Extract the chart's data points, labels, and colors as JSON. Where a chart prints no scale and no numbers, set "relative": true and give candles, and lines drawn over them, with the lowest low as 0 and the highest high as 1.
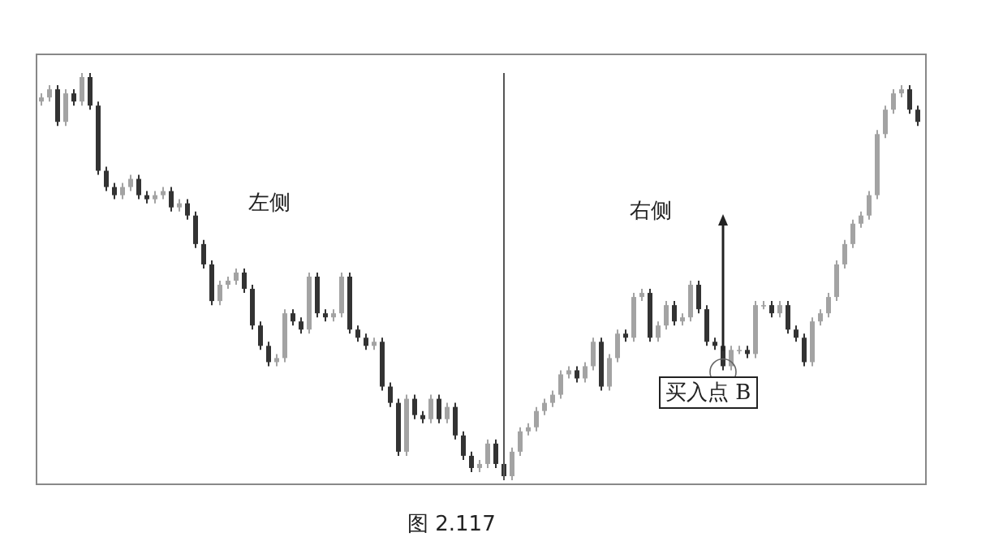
{
  "chart_data": {
    "type": "candlestick",
    "relative": true,
    "colors": [
      "#a3a3a3",
      "#a3a3a3",
      "#333333",
      "#a3a3a3",
      "#333333",
      "#a3a3a3",
      "#333333",
      "#333333",
      "#333333",
      "#333333",
      "#a3a3a3",
      "#a3a3a3",
      "#333333",
      "#333333",
      "#a3a3a3",
      "#a3a3a3",
      "#333333",
      "#a3a3a3",
      "#333333",
      "#333333",
      "#333333",
      "#333333",
      "#a3a3a3",
      "#a3a3a3",
      "#a3a3a3",
      "#333333",
      "#333333",
      "#333333",
      "#333333",
      "#a3a3a3",
      "#a3a3a3",
      "#333333",
      "#333333",
      "#a3a3a3",
      "#333333",
      "#333333",
      "#a3a3a3",
      "#a3a3a3",
      "#333333",
      "#333333",
      "#333333",
      "#a3a3a3",
      "#333333",
      "#333333",
      "#333333",
      "#a3a3a3",
      "#333333",
      "#333333",
      "#a3a3a3",
      "#333333",
      "#a3a3a3",
      "#333333",
      "#333333",
      "#333333",
      "#a3a3a3",
      "#a3a3a3",
      "#333333",
      "#333333",
      "#a3a3a3",
      "#a3a3a3",
      "#a3a3a3",
      "#a3a3a3",
      "#a3a3a3",
      "#a3a3a3",
      "#a3a3a3",
      "#a3a3a3",
      "#333333",
      "#a3a3a3",
      "#a3a3a3",
      "#333333",
      "#a3a3a3",
      "#a3a3a3",
      "#333333",
      "#a3a3a3",
      "#a3a3a3",
      "#333333",
      "#a3a3a3",
      "#a3a3a3",
      "#333333",
      "#a3a3a3",
      "#a3a3a3",
      "#333333",
      "#333333",
      "#333333",
      "#333333",
      "#a3a3a3",
      "#a3a3a3",
      "#333333",
      "#a3a3a3",
      "#a3a3a3",
      "#333333",
      "#a3a3a3",
      "#333333",
      "#333333",
      "#333333",
      "#a3a3a3",
      "#a3a3a3",
      "#a3a3a3",
      "#a3a3a3",
      "#a3a3a3",
      "#a3a3a3",
      "#a3a3a3",
      "#a3a3a3",
      "#a3a3a3",
      "#a3a3a3",
      "#a3a3a3",
      "#a3a3a3",
      "#333333",
      "#333333"
    ],
    "annotations": [
      "左侧",
      "右侧",
      "买入点 B",
      "图 2.117"
    ],
    "categories": [
      null,
      null,
      null,
      null,
      null,
      null,
      null,
      null,
      null,
      null,
      null,
      null,
      null,
      null,
      null,
      null,
      null,
      null,
      null,
      null,
      null,
      null,
      null,
      null,
      null,
      null,
      null,
      null,
      null,
      null,
      null,
      null,
      null,
      null,
      null,
      null,
      null,
      null,
      null,
      null,
      null,
      null,
      null,
      null,
      null,
      null,
      null,
      null,
      null,
      null,
      null,
      null,
      null,
      null,
      null,
      null,
      null,
      null,
      null,
      null,
      null,
      null,
      null,
      null,
      null,
      null,
      null,
      null,
      null,
      null,
      null,
      null,
      null,
      null,
      null,
      null,
      null,
      null,
      null,
      null,
      null,
      null,
      null,
      null,
      null,
      null,
      null,
      null,
      null,
      null,
      null,
      null,
      null,
      null,
      null,
      null,
      null,
      null,
      null,
      null,
      null,
      null,
      null,
      null,
      null,
      null,
      null,
      null,
      null
    ],
    "ohlc": [
      [
        0.93,
        0.95,
        0.92,
        0.94
      ],
      [
        0.94,
        0.97,
        0.93,
        0.96
      ],
      [
        0.96,
        0.97,
        0.87,
        0.88
      ],
      [
        0.88,
        0.96,
        0.87,
        0.95
      ],
      [
        0.95,
        0.96,
        0.92,
        0.93
      ],
      [
        0.93,
        1,
        0.92,
        0.99
      ],
      [
        0.99,
        1,
        0.91,
        0.92
      ],
      [
        0.92,
        0.93,
        0.75,
        0.76
      ],
      [
        0.76,
        0.77,
        0.71,
        0.72
      ],
      [
        0.72,
        0.73,
        0.69,
        0.7
      ],
      [
        0.7,
        0.73,
        0.69,
        0.72
      ],
      [
        0.72,
        0.75,
        0.71,
        0.74
      ],
      [
        0.74,
        0.75,
        0.69,
        0.7
      ],
      [
        0.7,
        0.71,
        0.68,
        0.69
      ],
      [
        0.69,
        0.71,
        0.68,
        0.7
      ],
      [
        0.7,
        0.72,
        0.69,
        0.71
      ],
      [
        0.71,
        0.72,
        0.66,
        0.67
      ],
      [
        0.67,
        0.69,
        0.66,
        0.68
      ],
      [
        0.68,
        0.69,
        0.64,
        0.65
      ],
      [
        0.65,
        0.66,
        0.57,
        0.58
      ],
      [
        0.58,
        0.59,
        0.52,
        0.53
      ],
      [
        0.53,
        0.54,
        0.43,
        0.44
      ],
      [
        0.44,
        0.49,
        0.43,
        0.48
      ],
      [
        0.48,
        0.5,
        0.47,
        0.49
      ],
      [
        0.49,
        0.52,
        0.48,
        0.51
      ],
      [
        0.51,
        0.52,
        0.46,
        0.47
      ],
      [
        0.47,
        0.48,
        0.37,
        0.38
      ],
      [
        0.38,
        0.39,
        0.32,
        0.33
      ],
      [
        0.33,
        0.34,
        0.28,
        0.29
      ],
      [
        0.29,
        0.31,
        0.28,
        0.3
      ],
      [
        0.3,
        0.42,
        0.29,
        0.41
      ],
      [
        0.41,
        0.42,
        0.38,
        0.39
      ],
      [
        0.39,
        0.4,
        0.36,
        0.37
      ],
      [
        0.37,
        0.51,
        0.36,
        0.5
      ],
      [
        0.5,
        0.51,
        0.4,
        0.41
      ],
      [
        0.41,
        0.42,
        0.39,
        0.4
      ],
      [
        0.4,
        0.42,
        0.39,
        0.41
      ],
      [
        0.41,
        0.51,
        0.4,
        0.5
      ],
      [
        0.5,
        0.51,
        0.36,
        0.37
      ],
      [
        0.37,
        0.38,
        0.34,
        0.35
      ],
      [
        0.35,
        0.36,
        0.32,
        0.33
      ],
      [
        0.33,
        0.35,
        0.32,
        0.34
      ],
      [
        0.34,
        0.35,
        0.22,
        0.23
      ],
      [
        0.23,
        0.24,
        0.18,
        0.19
      ],
      [
        0.19,
        0.2,
        0.06,
        0.07
      ],
      [
        0.07,
        0.21,
        0.06,
        0.2
      ],
      [
        0.2,
        0.21,
        0.15,
        0.16
      ],
      [
        0.16,
        0.17,
        0.14,
        0.15
      ],
      [
        0.15,
        0.21,
        0.14,
        0.2
      ],
      [
        0.2,
        0.21,
        0.14,
        0.15
      ],
      [
        0.15,
        0.19,
        0.14,
        0.18
      ],
      [
        0.18,
        0.19,
        0.1,
        0.11
      ],
      [
        0.11,
        0.12,
        0.05,
        0.06
      ],
      [
        0.06,
        0.07,
        0.02,
        0.03
      ],
      [
        0.03,
        0.05,
        0.02,
        0.04
      ],
      [
        0.04,
        0.1,
        0.03,
        0.09
      ],
      [
        0.09,
        0.1,
        0.03,
        0.04
      ],
      [
        0.04,
        0.05,
        0,
        0.01
      ],
      [
        0.01,
        0.08,
        0,
        0.07
      ],
      [
        0.07,
        0.13,
        0.06,
        0.12
      ],
      [
        0.12,
        0.14,
        0.11,
        0.13
      ],
      [
        0.13,
        0.18,
        0.12,
        0.17
      ],
      [
        0.17,
        0.2,
        0.16,
        0.19
      ],
      [
        0.19,
        0.22,
        0.18,
        0.21
      ],
      [
        0.21,
        0.27,
        0.2,
        0.26
      ],
      [
        0.26,
        0.28,
        0.25,
        0.27
      ],
      [
        0.27,
        0.28,
        0.24,
        0.25
      ],
      [
        0.25,
        0.29,
        0.24,
        0.28
      ],
      [
        0.28,
        0.35,
        0.27,
        0.34
      ],
      [
        0.34,
        0.35,
        0.22,
        0.23
      ],
      [
        0.23,
        0.31,
        0.22,
        0.3
      ],
      [
        0.3,
        0.37,
        0.29,
        0.36
      ],
      [
        0.36,
        0.37,
        0.34,
        0.35
      ],
      [
        0.35,
        0.46,
        0.34,
        0.45
      ],
      [
        0.45,
        0.47,
        0.44,
        0.46
      ],
      [
        0.46,
        0.47,
        0.34,
        0.35
      ],
      [
        0.35,
        0.39,
        0.34,
        0.38
      ],
      [
        0.38,
        0.44,
        0.37,
        0.43
      ],
      [
        0.43,
        0.44,
        0.38,
        0.39
      ],
      [
        0.39,
        0.41,
        0.38,
        0.4
      ],
      [
        0.4,
        0.49,
        0.39,
        0.48
      ],
      [
        0.48,
        0.49,
        0.41,
        0.42
      ],
      [
        0.42,
        0.43,
        0.33,
        0.34
      ],
      [
        0.34,
        0.35,
        0.32,
        0.33
      ],
      [
        0.33,
        0.34,
        0.27,
        0.28
      ],
      [
        0.28,
        0.33,
        0.27,
        0.32
      ],
      [
        0.32,
        0.33,
        0.31,
        0.32
      ],
      [
        0.32,
        0.33,
        0.3,
        0.31
      ],
      [
        0.31,
        0.44,
        0.3,
        0.43
      ],
      [
        0.43,
        0.44,
        0.42,
        0.43
      ],
      [
        0.43,
        0.44,
        0.4,
        0.41
      ],
      [
        0.41,
        0.44,
        0.4,
        0.43
      ],
      [
        0.43,
        0.44,
        0.36,
        0.37
      ],
      [
        0.37,
        0.38,
        0.34,
        0.35
      ],
      [
        0.35,
        0.36,
        0.28,
        0.29
      ],
      [
        0.29,
        0.4,
        0.28,
        0.39
      ],
      [
        0.39,
        0.42,
        0.38,
        0.41
      ],
      [
        0.41,
        0.46,
        0.4,
        0.45
      ],
      [
        0.45,
        0.54,
        0.44,
        0.53
      ],
      [
        0.53,
        0.59,
        0.52,
        0.58
      ],
      [
        0.58,
        0.64,
        0.57,
        0.63
      ],
      [
        0.63,
        0.66,
        0.62,
        0.65
      ],
      [
        0.65,
        0.71,
        0.64,
        0.7
      ],
      [
        0.7,
        0.86,
        0.69,
        0.85
      ],
      [
        0.85,
        0.92,
        0.84,
        0.91
      ],
      [
        0.91,
        0.96,
        0.9,
        0.95
      ],
      [
        0.95,
        0.97,
        0.94,
        0.96
      ],
      [
        0.96,
        0.97,
        0.9,
        0.91
      ],
      [
        0.91,
        0.92,
        0.87,
        0.88
      ]
    ]
  }
}
